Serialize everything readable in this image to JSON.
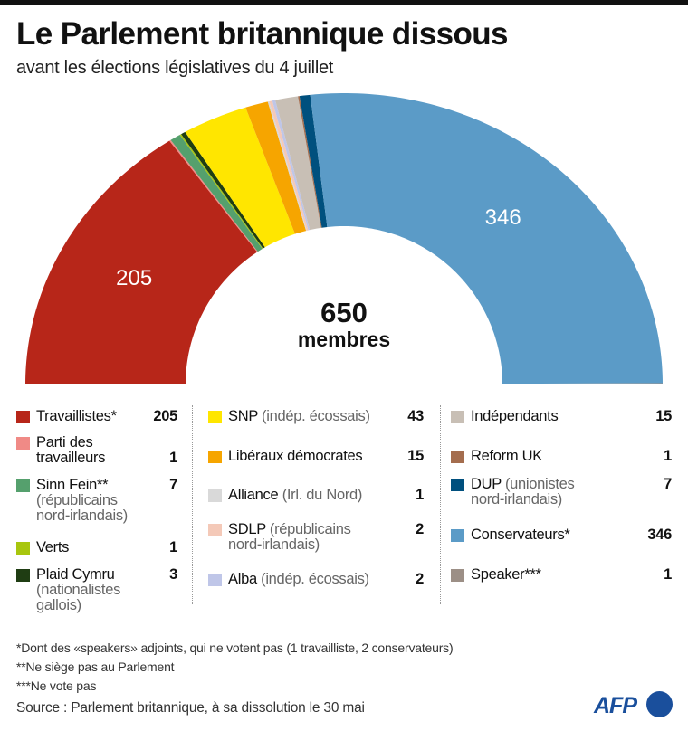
{
  "title": "Le Parlement britannique dissous",
  "subtitle": "avant les élections législatives du 4 juillet",
  "chart_data": {
    "type": "pie",
    "subtype": "semicircle-donut",
    "total": 650,
    "center_total": "650",
    "center_unit": "membres",
    "series": [
      {
        "name": "Travaillistes*",
        "note": "",
        "value": 205,
        "color": "#b72619",
        "label": "205"
      },
      {
        "name": "Parti des\ntravailleurs",
        "note": "",
        "value": 1,
        "color": "#f08a86",
        "label": ""
      },
      {
        "name": "Sinn Fein**",
        "note": "(républicains\nnord-irlandais)",
        "value": 7,
        "color": "#55a06d",
        "label": ""
      },
      {
        "name": "Verts",
        "note": "",
        "value": 1,
        "color": "#a8c60e",
        "label": ""
      },
      {
        "name": "Plaid Cymru",
        "note": "(nationalistes\ngallois)",
        "value": 3,
        "color": "#1f3d13",
        "label": ""
      },
      {
        "name": "SNP",
        "note": "(indép. écossais)",
        "value": 43,
        "color": "#ffe600",
        "label": ""
      },
      {
        "name": "Libéraux démocrates",
        "note": "",
        "value": 15,
        "color": "#f6a500",
        "label": ""
      },
      {
        "name": "Alliance",
        "note": "(Irl. du Nord)",
        "value": 1,
        "color": "#d9d9d9",
        "label": ""
      },
      {
        "name": "SDLP",
        "note": "(républicains\nnord-irlandais)",
        "value": 2,
        "color": "#f4c9b8",
        "label": ""
      },
      {
        "name": "Alba",
        "note": "(indép. écossais)",
        "value": 2,
        "color": "#bfc6e8",
        "label": ""
      },
      {
        "name": "Indépendants",
        "note": "",
        "value": 15,
        "color": "#c8bfb5",
        "label": ""
      },
      {
        "name": "Reform UK",
        "note": "",
        "value": 1,
        "color": "#a46d4e",
        "label": ""
      },
      {
        "name": "DUP",
        "note": "(unionistes\nnord-irlandais)",
        "value": 7,
        "color": "#00507e",
        "label": ""
      },
      {
        "name": "Conservateurs*",
        "note": "",
        "value": 346,
        "color": "#5b9bc7",
        "label": "346"
      },
      {
        "name": "Speaker***",
        "note": "",
        "value": 1,
        "color": "#9c8f86",
        "label": ""
      }
    ]
  },
  "footnotes": [
    "*Dont des «speakers» adjoints, qui ne votent pas (1 travailliste, 2 conservateurs)",
    "**Ne siège pas au Parlement",
    "***Ne vote pas"
  ],
  "source": "Source : Parlement britannique, à sa dissolution le 30 mai",
  "logo": "AFP"
}
